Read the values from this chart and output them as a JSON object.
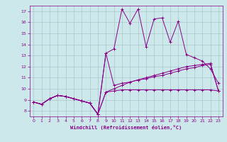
{
  "xlabel": "Windchill (Refroidissement éolien,°C)",
  "bg_color": "#cde8ea",
  "line_color": "#880088",
  "grid_color": "#a8c8cc",
  "xlim": [
    -0.5,
    23.5
  ],
  "ylim": [
    7.5,
    17.5
  ],
  "xticks": [
    0,
    1,
    2,
    3,
    4,
    5,
    6,
    7,
    8,
    9,
    10,
    11,
    12,
    13,
    14,
    15,
    16,
    17,
    18,
    19,
    20,
    21,
    22,
    23
  ],
  "yticks": [
    8,
    9,
    10,
    11,
    12,
    13,
    14,
    15,
    16,
    17
  ],
  "series": [
    [
      8.8,
      8.6,
      9.1,
      9.4,
      9.3,
      9.1,
      8.9,
      8.7,
      7.7,
      13.2,
      13.6,
      17.2,
      15.9,
      17.2,
      13.8,
      16.3,
      16.4,
      14.2,
      16.1,
      13.1,
      12.8,
      12.5,
      11.8,
      10.5
    ],
    [
      8.8,
      8.6,
      9.1,
      9.4,
      9.3,
      9.1,
      8.9,
      8.7,
      7.7,
      13.2,
      10.3,
      10.5,
      10.6,
      10.8,
      10.9,
      11.1,
      11.2,
      11.4,
      11.6,
      11.8,
      11.9,
      12.1,
      12.2,
      9.8
    ],
    [
      8.8,
      8.6,
      9.1,
      9.4,
      9.3,
      9.1,
      8.9,
      8.7,
      7.7,
      9.7,
      9.8,
      9.9,
      9.9,
      9.9,
      9.9,
      9.9,
      9.9,
      9.9,
      9.9,
      9.9,
      9.9,
      9.9,
      9.9,
      9.8
    ],
    [
      8.8,
      8.6,
      9.1,
      9.4,
      9.3,
      9.1,
      8.9,
      8.7,
      7.7,
      9.7,
      10.0,
      10.3,
      10.6,
      10.8,
      11.0,
      11.2,
      11.4,
      11.6,
      11.8,
      12.0,
      12.1,
      12.2,
      12.3,
      9.8
    ]
  ]
}
